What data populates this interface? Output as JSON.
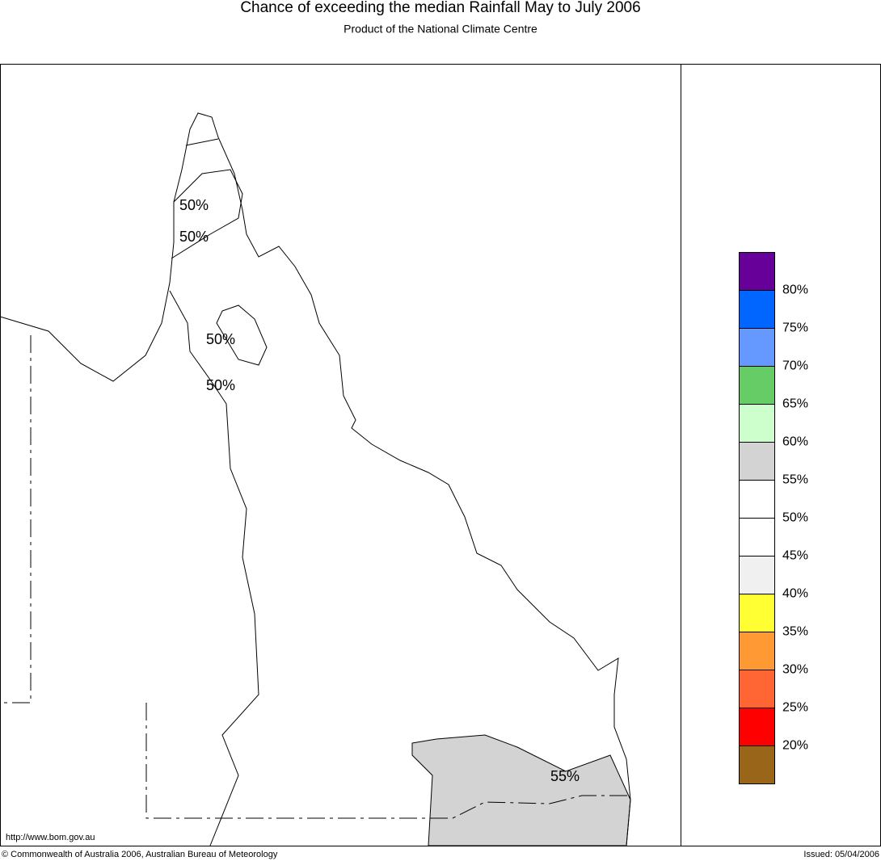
{
  "header": {
    "title": "Chance of exceeding the median Rainfall May to July 2006",
    "subtitle": "Product of the National Climate Centre"
  },
  "map": {
    "contour_labels": [
      "50%",
      "50%",
      "50%",
      "50%",
      "55%"
    ],
    "url": "http://www.bom.gov.au"
  },
  "legend": {
    "colors": [
      "#660099",
      "#0066ff",
      "#6699ff",
      "#66cc66",
      "#ccffcc",
      "#d3d3d3",
      "#ffffff",
      "#ffffff",
      "#f0f0f0",
      "#ffff33",
      "#ff9933",
      "#ff6633",
      "#ff0000",
      "#996619"
    ],
    "labels": [
      "80%",
      "75%",
      "70%",
      "65%",
      "60%",
      "55%",
      "50%",
      "45%",
      "40%",
      "35%",
      "30%",
      "25%",
      "20%"
    ]
  },
  "footer": {
    "copyright": "© Commonwealth of Australia 2006, Australian Bureau of Meteorology",
    "issued": "Issued: 05/04/2006"
  }
}
